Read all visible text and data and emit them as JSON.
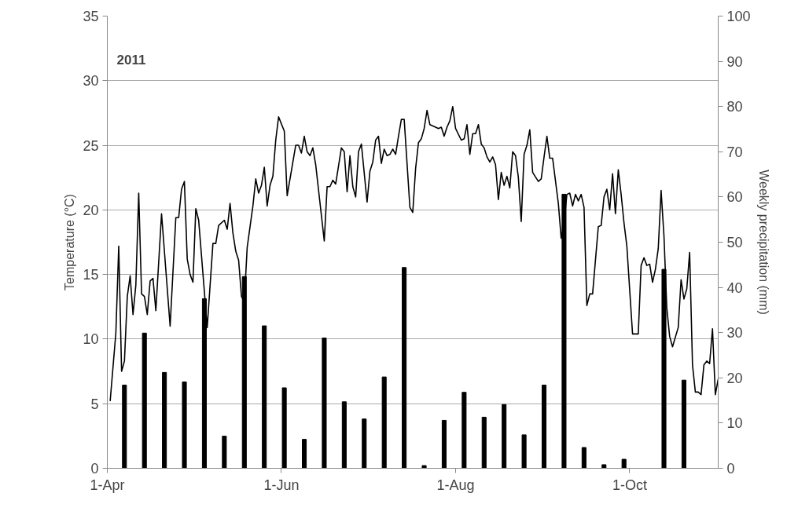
{
  "chart_data": {
    "type": "line",
    "ylabel": "Temperature (°C)",
    "y2label": "Weekly precipitation (mm)",
    "annotations": [
      "2011"
    ],
    "grid": "y",
    "xlim": [
      "2011-04-01",
      "2011-11-01"
    ],
    "xticks": [
      {
        "value": "2011-04-01",
        "label": "1-Apr"
      },
      {
        "value": "2011-06-01",
        "label": "1-Jun"
      },
      {
        "value": "2011-08-01",
        "label": "1-Aug"
      },
      {
        "value": "2011-10-01",
        "label": "1-Oct"
      }
    ],
    "ylim": [
      0,
      35
    ],
    "yticks": [
      0,
      5,
      10,
      15,
      20,
      25,
      30,
      35
    ],
    "y2lim": [
      0,
      100
    ],
    "y2ticks": [
      0,
      10,
      20,
      30,
      40,
      50,
      60,
      70,
      80,
      90,
      100
    ],
    "series": [
      {
        "color": "#000000",
        "x": [
          "2011-04-02",
          "2011-04-04",
          "2011-04-05",
          "2011-04-06",
          "2011-04-07",
          "2011-04-08",
          "2011-04-09",
          "2011-04-10",
          "2011-04-11",
          "2011-04-12",
          "2011-04-13",
          "2011-04-14",
          "2011-04-15",
          "2011-04-16",
          "2011-04-17",
          "2011-04-18",
          "2011-04-20",
          "2011-04-23",
          "2011-04-25",
          "2011-04-26",
          "2011-04-27",
          "2011-04-28",
          "2011-04-29",
          "2011-04-30",
          "2011-05-01",
          "2011-05-02",
          "2011-05-03",
          "2011-05-06",
          "2011-05-08",
          "2011-05-09",
          "2011-05-10",
          "2011-05-12",
          "2011-05-13",
          "2011-05-14",
          "2011-05-15",
          "2011-05-16",
          "2011-05-17",
          "2011-05-18",
          "2011-05-19",
          "2011-05-20",
          "2011-05-22",
          "2011-05-23",
          "2011-05-24",
          "2011-05-25",
          "2011-05-26",
          "2011-05-27",
          "2011-05-28",
          "2011-05-29",
          "2011-05-30",
          "2011-05-31",
          "2011-06-02",
          "2011-06-03",
          "2011-06-06",
          "2011-06-07",
          "2011-06-08",
          "2011-06-09",
          "2011-06-10",
          "2011-06-11",
          "2011-06-12",
          "2011-06-13",
          "2011-06-16",
          "2011-06-17",
          "2011-06-18",
          "2011-06-19",
          "2011-06-20",
          "2011-06-22",
          "2011-06-23",
          "2011-06-24",
          "2011-06-25",
          "2011-06-26",
          "2011-06-27",
          "2011-06-28",
          "2011-06-29",
          "2011-07-01",
          "2011-07-02",
          "2011-07-03",
          "2011-07-04",
          "2011-07-05",
          "2011-07-06",
          "2011-07-07",
          "2011-07-08",
          "2011-07-09",
          "2011-07-10",
          "2011-07-11",
          "2011-07-12",
          "2011-07-13",
          "2011-07-14",
          "2011-07-16",
          "2011-07-17",
          "2011-07-18",
          "2011-07-19",
          "2011-07-20",
          "2011-07-21",
          "2011-07-22",
          "2011-07-23",
          "2011-07-25",
          "2011-07-26",
          "2011-07-27",
          "2011-07-28",
          "2011-07-29",
          "2011-07-30",
          "2011-07-31",
          "2011-08-01",
          "2011-08-03",
          "2011-08-04",
          "2011-08-05",
          "2011-08-06",
          "2011-08-07",
          "2011-08-08",
          "2011-08-09",
          "2011-08-10",
          "2011-08-11",
          "2011-08-12",
          "2011-08-13",
          "2011-08-14",
          "2011-08-15",
          "2011-08-16",
          "2011-08-17",
          "2011-08-18",
          "2011-08-19",
          "2011-08-20",
          "2011-08-21",
          "2011-08-22",
          "2011-08-23",
          "2011-08-24",
          "2011-08-25",
          "2011-08-26",
          "2011-08-27",
          "2011-08-28",
          "2011-08-30",
          "2011-08-31",
          "2011-09-01",
          "2011-09-02",
          "2011-09-03",
          "2011-09-04",
          "2011-09-06",
          "2011-09-07",
          "2011-09-08",
          "2011-09-09",
          "2011-09-10",
          "2011-09-11",
          "2011-09-12",
          "2011-09-13",
          "2011-09-14",
          "2011-09-15",
          "2011-09-16",
          "2011-09-17",
          "2011-09-18",
          "2011-09-20",
          "2011-09-21",
          "2011-09-22",
          "2011-09-23",
          "2011-09-24",
          "2011-09-25",
          "2011-09-26",
          "2011-09-27",
          "2011-09-28",
          "2011-09-29",
          "2011-09-30",
          "2011-10-02",
          "2011-10-03",
          "2011-10-04",
          "2011-10-05",
          "2011-10-06",
          "2011-10-07",
          "2011-10-08",
          "2011-10-09",
          "2011-10-10",
          "2011-10-11",
          "2011-10-12",
          "2011-10-13",
          "2011-10-14",
          "2011-10-15",
          "2011-10-16",
          "2011-10-18",
          "2011-10-19",
          "2011-10-20",
          "2011-10-21",
          "2011-10-22",
          "2011-10-23",
          "2011-10-24",
          "2011-10-25",
          "2011-10-26",
          "2011-10-27",
          "2011-10-28",
          "2011-10-29",
          "2011-10-30",
          "2011-10-31",
          "2011-11-01"
        ],
        "values": [
          5.2,
          10.5,
          17.2,
          7.5,
          8.3,
          13.3,
          14.9,
          11.9,
          14.2,
          21.3,
          13.5,
          13.3,
          11.9,
          14.5,
          14.7,
          12.2,
          19.7,
          11.0,
          19.4,
          19.4,
          21.6,
          22.2,
          16.2,
          15.0,
          14.4,
          20.1,
          19.2,
          10.9,
          17.4,
          17.4,
          18.8,
          19.2,
          18.5,
          20.5,
          18.2,
          16.8,
          16.1,
          13.3,
          12.9,
          17.1,
          20.3,
          22.4,
          21.3,
          21.9,
          23.3,
          20.3,
          21.9,
          22.6,
          25.4,
          27.2,
          26.1,
          21.1,
          25.0,
          25.0,
          24.4,
          25.7,
          24.5,
          24.2,
          24.8,
          23.5,
          17.6,
          21.8,
          21.8,
          22.3,
          22.0,
          24.8,
          24.5,
          21.4,
          24.2,
          21.8,
          21.0,
          24.5,
          25.1,
          20.6,
          23.0,
          23.7,
          25.4,
          25.7,
          23.6,
          24.7,
          24.2,
          24.3,
          24.7,
          24.3,
          25.7,
          27.0,
          27.0,
          20.2,
          19.8,
          23.2,
          25.2,
          25.5,
          26.3,
          27.7,
          26.6,
          26.4,
          26.3,
          26.4,
          25.7,
          26.4,
          26.9,
          28.0,
          26.3,
          25.4,
          25.5,
          26.6,
          24.3,
          25.9,
          25.9,
          26.6,
          25.1,
          24.8,
          24.1,
          23.7,
          24.1,
          23.5,
          20.8,
          22.9,
          21.9,
          22.6,
          21.7,
          24.5,
          24.2,
          22.5,
          19.1,
          24.3,
          25.0,
          26.2,
          22.9,
          22.2,
          22.4,
          24.1,
          25.7,
          24.0,
          24.0,
          20.5,
          17.8,
          19.0,
          21.2,
          21.3,
          20.3,
          21.2,
          20.7,
          21.2,
          20.2,
          12.6,
          13.5,
          13.5,
          18.7,
          18.8,
          21.0,
          21.6,
          20.0,
          22.8,
          19.7,
          23.1,
          21.2,
          19.0,
          17.2,
          10.4,
          10.4,
          10.4,
          15.7,
          16.3,
          15.7,
          15.8,
          14.4,
          15.4,
          17.0,
          21.5,
          18.0,
          12.4,
          10.2,
          9.4,
          10.9,
          14.6,
          13.1,
          13.9,
          16.7,
          8.0,
          5.9,
          5.9,
          5.7,
          8.0,
          8.3,
          8.1,
          10.8,
          5.7,
          6.9
        ]
      },
      {
        "type": "bar",
        "axis": "y2",
        "color": "#000000",
        "x": [
          "2011-04-07",
          "2011-04-14",
          "2011-04-21",
          "2011-04-28",
          "2011-05-05",
          "2011-05-12",
          "2011-05-19",
          "2011-05-26",
          "2011-06-02",
          "2011-06-09",
          "2011-06-16",
          "2011-06-23",
          "2011-06-30",
          "2011-07-07",
          "2011-07-14",
          "2011-07-21",
          "2011-07-28",
          "2011-08-04",
          "2011-08-11",
          "2011-08-18",
          "2011-08-25",
          "2011-09-01",
          "2011-09-08",
          "2011-09-15",
          "2011-09-22",
          "2011-09-29",
          "2011-10-06",
          "2011-10-13",
          "2011-10-20"
        ],
        "values": [
          18.4,
          29.9,
          21.2,
          19.1,
          37.5,
          7.1,
          42.4,
          31.5,
          17.8,
          6.4,
          28.8,
          14.7,
          10.9,
          20.2,
          44.4,
          0.6,
          10.6,
          16.8,
          11.3,
          14.1,
          7.4,
          18.4,
          60.6,
          4.6,
          0.8,
          2.0,
          0,
          44.0,
          19.5
        ]
      }
    ]
  }
}
